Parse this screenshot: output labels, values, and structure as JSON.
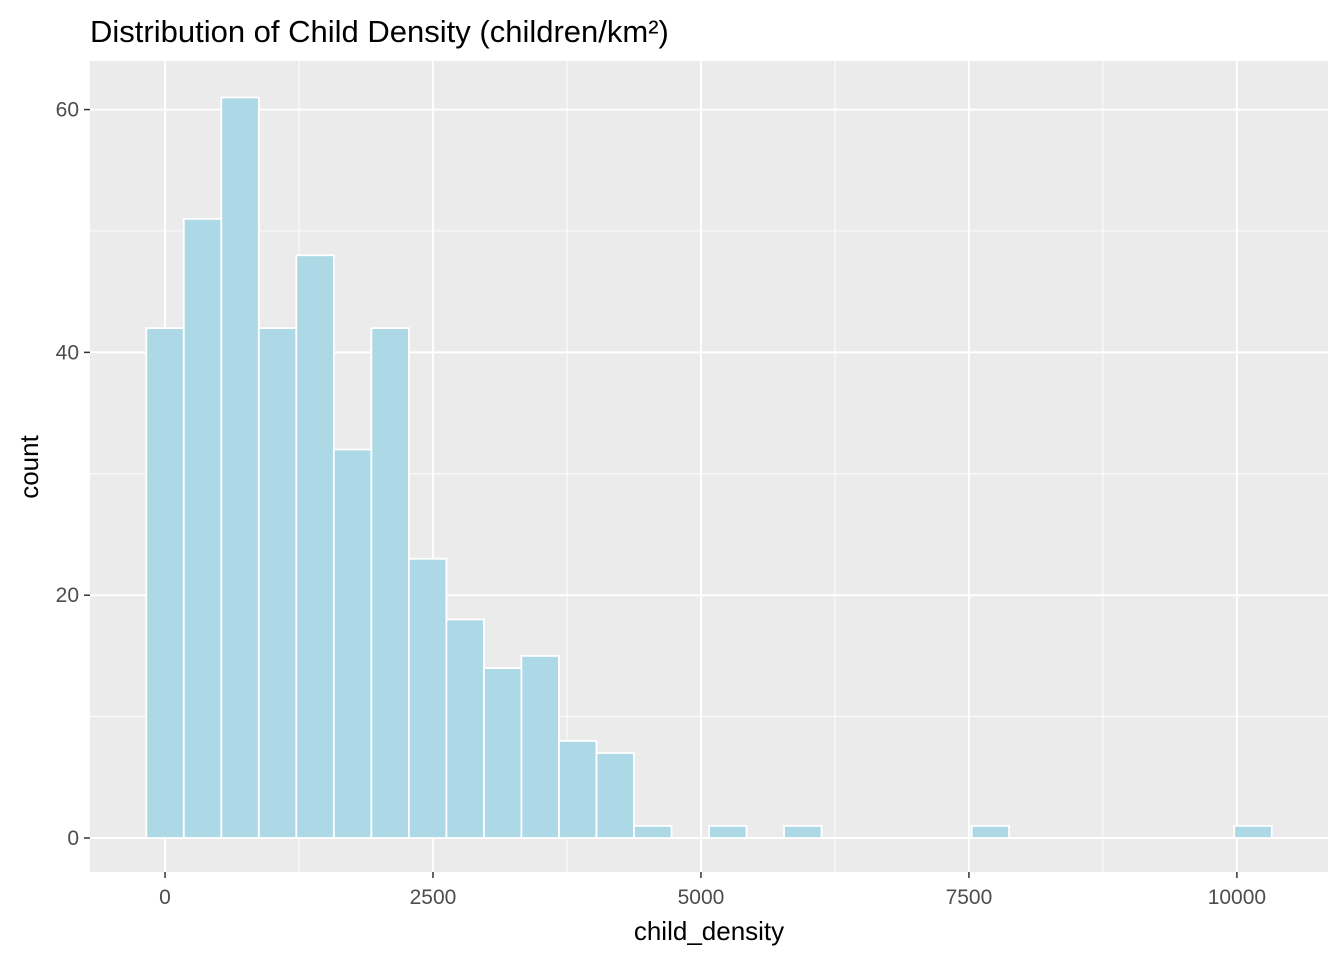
{
  "chart_data": {
    "type": "bar",
    "title": "Distribution of Child Density (children/km²)",
    "xlabel": "child_density",
    "ylabel": "count",
    "bin_width": 350,
    "bins": [
      {
        "x_start": -175,
        "x_end": 175,
        "count": 42
      },
      {
        "x_start": 175,
        "x_end": 525,
        "count": 51
      },
      {
        "x_start": 525,
        "x_end": 875,
        "count": 61
      },
      {
        "x_start": 875,
        "x_end": 1225,
        "count": 42
      },
      {
        "x_start": 1225,
        "x_end": 1575,
        "count": 48
      },
      {
        "x_start": 1575,
        "x_end": 1925,
        "count": 32
      },
      {
        "x_start": 1925,
        "x_end": 2275,
        "count": 42
      },
      {
        "x_start": 2275,
        "x_end": 2625,
        "count": 23
      },
      {
        "x_start": 2625,
        "x_end": 2975,
        "count": 18
      },
      {
        "x_start": 2975,
        "x_end": 3325,
        "count": 14
      },
      {
        "x_start": 3325,
        "x_end": 3675,
        "count": 15
      },
      {
        "x_start": 3675,
        "x_end": 4025,
        "count": 8
      },
      {
        "x_start": 4025,
        "x_end": 4375,
        "count": 7
      },
      {
        "x_start": 4375,
        "x_end": 4725,
        "count": 1
      },
      {
        "x_start": 5075,
        "x_end": 5425,
        "count": 1
      },
      {
        "x_start": 5775,
        "x_end": 6125,
        "count": 1
      },
      {
        "x_start": 7525,
        "x_end": 7875,
        "count": 1
      },
      {
        "x_start": 9975,
        "x_end": 10325,
        "count": 1
      }
    ],
    "xlim": [
      -700,
      10850
    ],
    "ylim": [
      -2.8,
      64
    ],
    "x_ticks": [
      0,
      2500,
      5000,
      7500,
      10000
    ],
    "x_tick_labels": [
      "0",
      "2500",
      "5000",
      "7500",
      "10000"
    ],
    "y_ticks": [
      0,
      20,
      40,
      60
    ],
    "y_tick_labels": [
      "0",
      "20",
      "40",
      "60"
    ],
    "x_minor_ticks": [
      1250,
      3750,
      6250,
      8750
    ],
    "y_minor_ticks": [
      10,
      30,
      50
    ],
    "grid": true,
    "colors": {
      "bar_fill": "#add8e6",
      "bar_outline": "#ffffff",
      "panel_background": "#ebebeb",
      "grid": "#ffffff",
      "tick_text": "#4d4d4d",
      "tick_mark": "#333333",
      "text": "#000000"
    }
  }
}
